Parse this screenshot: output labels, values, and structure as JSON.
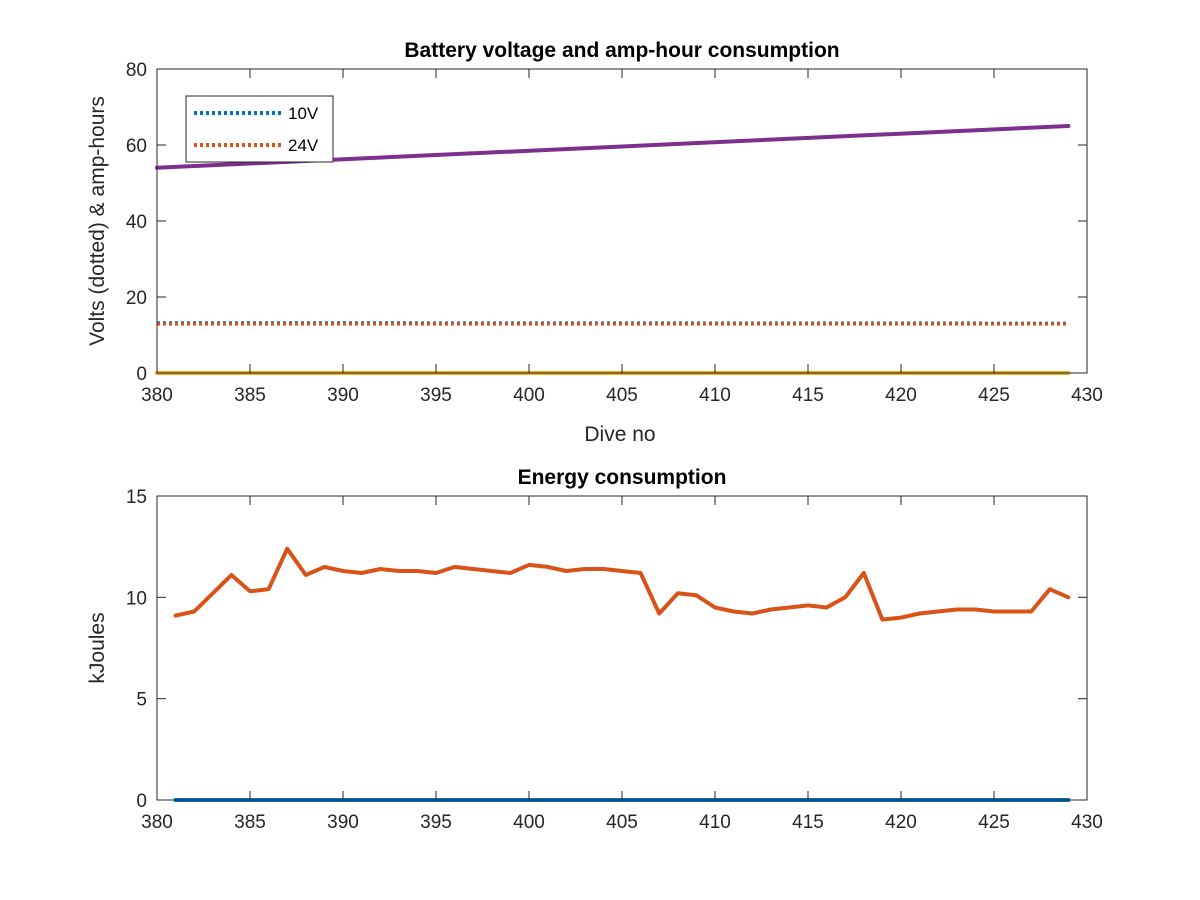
{
  "chart_data": [
    {
      "type": "line",
      "title": "Battery voltage and amp-hour consumption",
      "xlabel": "Dive no",
      "ylabel": "Volts (dotted) & amp-hours",
      "xlim": [
        380,
        430
      ],
      "ylim": [
        0,
        80
      ],
      "xticks": [
        "380",
        "385",
        "390",
        "395",
        "400",
        "405",
        "410",
        "415",
        "420",
        "425",
        "430"
      ],
      "yticks": [
        "0",
        "20",
        "40",
        "60",
        "80"
      ],
      "grid": false,
      "legend": {
        "location": "top-left",
        "entries": [
          "10V",
          "24V"
        ]
      },
      "series": [
        {
          "name": "10V",
          "style": "dotted",
          "color": "#0072BD",
          "x": [
            380,
            429
          ],
          "y": [
            13.2,
            13.1
          ]
        },
        {
          "name": "24V",
          "style": "dotted",
          "color": "#D95319",
          "x": [
            380,
            429
          ],
          "y": [
            12.9,
            12.9
          ]
        },
        {
          "style": "solid",
          "color": "#EDB120",
          "x": [
            380,
            429
          ],
          "y": [
            0,
            0
          ]
        },
        {
          "style": "solid",
          "color": "#7E2F8E",
          "x": [
            380,
            429
          ],
          "y": [
            54,
            65
          ]
        }
      ]
    },
    {
      "type": "line",
      "title": "Energy consumption",
      "xlabel": "",
      "ylabel": "kJoules",
      "xlim": [
        380,
        430
      ],
      "ylim": [
        0,
        15
      ],
      "xticks": [
        "380",
        "385",
        "390",
        "395",
        "400",
        "405",
        "410",
        "415",
        "420",
        "425",
        "430"
      ],
      "yticks": [
        "0",
        "5",
        "10",
        "15"
      ],
      "grid": false,
      "series": [
        {
          "style": "solid",
          "color": "#D95319",
          "x": [
            381,
            382,
            383,
            384,
            385,
            386,
            387,
            388,
            389,
            390,
            391,
            392,
            393,
            394,
            395,
            396,
            397,
            398,
            399,
            400,
            401,
            402,
            403,
            404,
            405,
            406,
            407,
            408,
            409,
            410,
            411,
            412,
            413,
            414,
            415,
            416,
            417,
            418,
            419,
            420,
            421,
            422,
            423,
            424,
            425,
            426,
            427,
            428,
            429
          ],
          "y": [
            9.1,
            9.3,
            10.2,
            11.1,
            10.3,
            10.4,
            12.4,
            11.1,
            11.5,
            11.3,
            11.2,
            11.4,
            11.3,
            11.3,
            11.2,
            11.5,
            11.4,
            11.3,
            11.2,
            11.6,
            11.5,
            11.3,
            11.4,
            11.4,
            11.3,
            11.2,
            9.2,
            10.2,
            10.1,
            9.5,
            9.3,
            9.2,
            9.4,
            9.5,
            9.6,
            9.5,
            10.0,
            11.2,
            8.9,
            9.0,
            9.2,
            9.3,
            9.4,
            9.4,
            9.3,
            9.3,
            9.3,
            10.4,
            10.0
          ]
        },
        {
          "style": "solid",
          "color": "#0072BD",
          "x": [
            381,
            429
          ],
          "y": [
            0,
            0
          ]
        }
      ]
    }
  ]
}
